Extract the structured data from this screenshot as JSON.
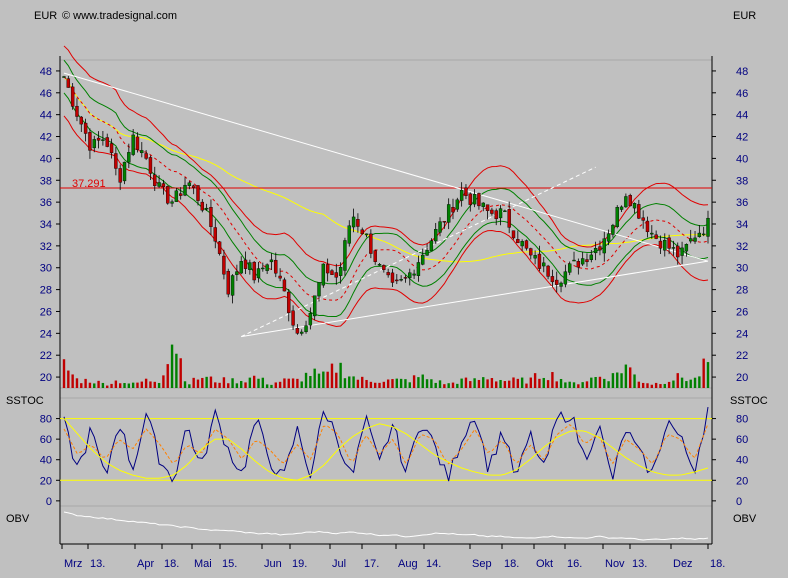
{
  "header": {
    "currency_left": "EUR",
    "currency_right": "EUR",
    "copyright": "© www.tradesignal.com"
  },
  "colors": {
    "background": "#c0c0c0",
    "axis_text": "#000080",
    "candle_up": "#008000",
    "candle_down": "#c00000",
    "bollinger": "#e00000",
    "keltner": "#008000",
    "ma_long": "#ffff00",
    "ma_dashed": "#e00000",
    "trendline": "#ffffff",
    "stoch_k": "#000080",
    "stoch_d": "#ff8000",
    "stoch_bands": "#ffff00",
    "obv": "#ffffff"
  },
  "chart_data": [
    {
      "type": "candlestick",
      "panel": "price",
      "ylim": [
        19,
        49
      ],
      "yticks": [
        20,
        22,
        24,
        26,
        28,
        30,
        32,
        34,
        36,
        38,
        40,
        42,
        44,
        46,
        48
      ],
      "resistance_level": 37.291,
      "resistance_label": "37.291",
      "close_path": [
        47.5,
        44,
        41,
        42,
        38,
        42,
        40,
        37,
        36,
        38,
        36,
        33,
        28,
        31,
        29,
        31,
        28,
        24,
        26,
        30,
        29,
        35,
        33,
        30,
        28,
        29,
        31,
        33,
        35,
        37,
        36,
        35,
        35,
        33,
        31,
        30,
        29,
        30,
        31,
        32,
        34,
        37,
        35,
        33,
        32,
        31,
        33,
        34
      ],
      "volume": [
        6,
        2,
        2,
        1,
        2,
        1,
        2,
        2,
        14,
        1,
        3,
        2,
        2,
        2,
        3,
        1,
        2,
        2,
        4,
        3,
        6,
        3,
        2,
        2,
        2,
        2,
        3,
        2,
        1,
        2,
        2,
        3,
        2,
        2,
        2,
        4,
        3,
        1,
        2,
        3,
        3,
        6,
        2,
        1,
        2,
        3,
        2,
        7
      ]
    },
    {
      "type": "line",
      "panel": "stochastic",
      "title": "SSTOC",
      "ylim": [
        -5,
        100
      ],
      "yticks": [
        0,
        20,
        40,
        60,
        80
      ],
      "bands": [
        20,
        80
      ],
      "series": [
        {
          "values": [
            75,
            30,
            70,
            20,
            80,
            30,
            85,
            40,
            20,
            75,
            30,
            85,
            50,
            25,
            80,
            40,
            20,
            70,
            25,
            90,
            60,
            20,
            80,
            35,
            75,
            25,
            80,
            55,
            20,
            60,
            85,
            30,
            70,
            20,
            65,
            30,
            80,
            85,
            40,
            75,
            20,
            70,
            45,
            25,
            80,
            60,
            30,
            90
          ]
        },
        {
          "values": [
            70,
            45,
            55,
            40,
            60,
            50,
            70,
            55,
            35,
            55,
            45,
            70,
            60,
            40,
            60,
            50,
            35,
            55,
            40,
            75,
            65,
            35,
            65,
            45,
            60,
            35,
            65,
            60,
            35,
            50,
            70,
            45,
            60,
            35,
            55,
            40,
            65,
            75,
            55,
            65,
            35,
            60,
            50,
            35,
            65,
            60,
            40,
            75
          ]
        },
        {
          "values": [
            80,
            65,
            50,
            38,
            30,
            25,
            22,
            22,
            25,
            35,
            50,
            60,
            60,
            50,
            38,
            28,
            22,
            20,
            25,
            35,
            50,
            62,
            70,
            75,
            72,
            65,
            55,
            45,
            38,
            32,
            28,
            25,
            25,
            30,
            40,
            52,
            62,
            68,
            68,
            62,
            52,
            42,
            34,
            28,
            25,
            25,
            28,
            32
          ]
        }
      ]
    },
    {
      "type": "line",
      "panel": "obv",
      "title": "OBV",
      "series": [
        {
          "values": [
            100,
            98,
            97,
            96,
            95,
            94,
            93,
            92,
            91,
            90,
            89,
            88,
            88,
            87,
            86,
            86,
            85,
            86,
            87,
            87,
            86,
            87,
            86,
            85,
            85,
            84,
            85,
            86,
            86,
            85,
            85,
            84,
            84,
            83,
            83,
            84,
            84,
            83,
            83,
            84,
            83,
            83,
            82,
            82,
            82,
            83,
            82,
            83
          ]
        }
      ]
    }
  ],
  "x_axis": {
    "labels": [
      "Mrz",
      "13.",
      "Apr",
      "18.",
      "Mai",
      "15.",
      "Jun",
      "19.",
      "Jul",
      "17.",
      "Aug",
      "14.",
      "Sep",
      "18.",
      "Okt",
      "16.",
      "Nov",
      "13.",
      "Dez",
      "18."
    ]
  }
}
